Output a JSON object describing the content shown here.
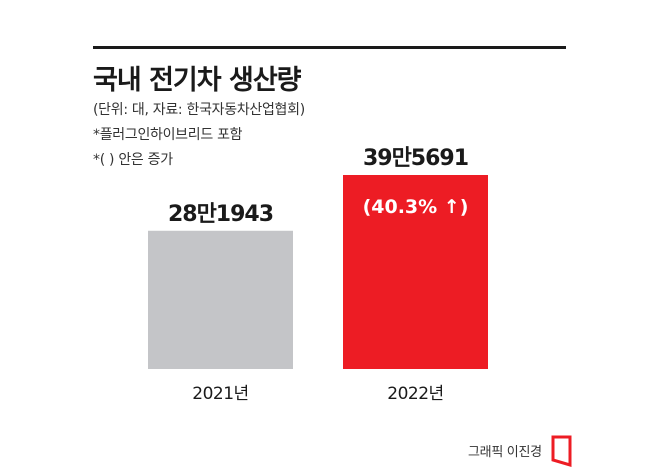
{
  "title": "국내 전기차 생산량",
  "notes": [
    "(단위: 대, 자료: 한국자동차산업협회)",
    "*플러그인하이브리드 포함",
    "*(   ) 안은 증가"
  ],
  "credit": "그래픽 이진경",
  "colors": {
    "bar_2021": "#c4c5c8",
    "bar_2022": "#ed1c24",
    "text": "#1a1a1a",
    "accent_text": "#ffffff"
  },
  "chart_data": {
    "type": "bar",
    "categories": [
      "2021년",
      "2022년"
    ],
    "values": [
      281943,
      395691
    ],
    "data_labels": [
      "28만1943",
      "39만5691"
    ],
    "annotations": [
      {
        "category": "2022년",
        "text": "(40.3% ↑)"
      }
    ],
    "title": "국내 전기차 생산량",
    "xlabel": "",
    "ylabel": "",
    "ylim": [
      0,
      395691
    ],
    "grid": false,
    "legend": "none"
  }
}
